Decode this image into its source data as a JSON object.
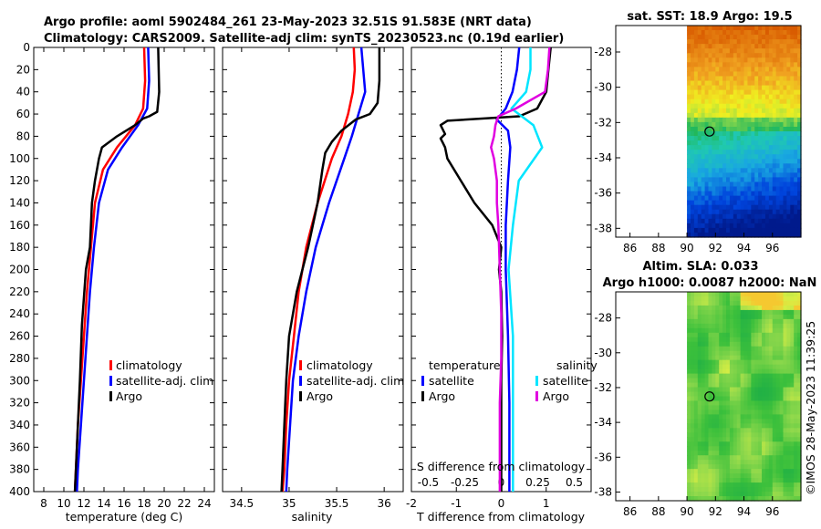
{
  "header": {
    "title_line1": "Argo profile: aoml 5902484_261 23-May-2023 32.51S 91.583E (NRT data)",
    "title_line2": "Climatology: CARS2009. Satellite-adj clim: synTS_20230523.nc (0.19d earlier)"
  },
  "colors": {
    "climatology": "#ff0000",
    "satellite": "#0000ff",
    "argo": "#000000",
    "salinity_satellite": "#00e5ff",
    "salinity_argo": "#e000e0"
  },
  "chart_data": [
    {
      "type": "line",
      "name": "temperature-panel",
      "xlabel": "temperature (deg C)",
      "ylabel": "",
      "xlim": [
        7,
        25
      ],
      "ylim": [
        0,
        400
      ],
      "xticks": [
        8,
        10,
        12,
        14,
        16,
        18,
        20,
        22,
        24
      ],
      "yticks": [
        0,
        20,
        40,
        60,
        80,
        100,
        120,
        140,
        160,
        180,
        200,
        220,
        240,
        260,
        280,
        300,
        320,
        340,
        360,
        380,
        400
      ],
      "legend": [
        "climatology",
        "satellite-adj. clim",
        "Argo"
      ],
      "series": [
        {
          "name": "climatology",
          "color": "#ff0000",
          "depth": [
            0,
            30,
            55,
            70,
            90,
            110,
            140,
            180,
            220,
            260,
            300,
            340,
            380,
            400
          ],
          "values": [
            18.0,
            18.1,
            17.9,
            17.1,
            15.3,
            13.9,
            13.1,
            12.7,
            12.3,
            12.0,
            11.7,
            11.4,
            11.2,
            11.1
          ]
        },
        {
          "name": "satellite-adj. clim",
          "color": "#0000ff",
          "depth": [
            0,
            30,
            55,
            70,
            90,
            110,
            140,
            180,
            220,
            260,
            300,
            340,
            380,
            400
          ],
          "values": [
            18.4,
            18.5,
            18.3,
            17.4,
            15.8,
            14.4,
            13.5,
            13.0,
            12.6,
            12.3,
            12.0,
            11.7,
            11.4,
            11.3
          ]
        },
        {
          "name": "Argo",
          "color": "#000000",
          "depth": [
            0,
            40,
            58,
            62,
            64,
            70,
            80,
            90,
            100,
            120,
            140,
            180,
            200,
            250,
            300,
            340,
            400
          ],
          "values": [
            19.4,
            19.5,
            19.3,
            18.5,
            17.9,
            17.1,
            15.3,
            13.8,
            13.5,
            13.1,
            12.8,
            12.6,
            12.2,
            11.8,
            11.6,
            11.4,
            11.1
          ]
        }
      ]
    },
    {
      "type": "line",
      "name": "salinity-panel",
      "xlabel": "salinity",
      "ylabel": "",
      "xlim": [
        34.3,
        36.2
      ],
      "ylim": [
        0,
        400
      ],
      "xticks": [
        34.5,
        35,
        35.5,
        36
      ],
      "xtick_labels": [
        "34.5",
        "35",
        "35.5",
        "36"
      ],
      "legend": [
        "climatology",
        "satellite-adj. clim",
        "Argo"
      ],
      "series": [
        {
          "name": "climatology",
          "color": "#ff0000",
          "depth": [
            0,
            20,
            40,
            60,
            80,
            100,
            140,
            180,
            220,
            260,
            300,
            340,
            380,
            400
          ],
          "values": [
            35.68,
            35.69,
            35.67,
            35.62,
            35.55,
            35.45,
            35.3,
            35.18,
            35.1,
            35.05,
            35.0,
            34.97,
            34.95,
            34.93
          ]
        },
        {
          "name": "satellite-adj. clim",
          "color": "#0000ff",
          "depth": [
            0,
            20,
            40,
            60,
            80,
            100,
            140,
            180,
            220,
            260,
            300,
            340,
            380,
            400
          ],
          "values": [
            35.76,
            35.78,
            35.8,
            35.73,
            35.66,
            35.58,
            35.42,
            35.28,
            35.18,
            35.1,
            35.04,
            35.01,
            34.98,
            34.97
          ]
        },
        {
          "name": "Argo",
          "color": "#000000",
          "depth": [
            0,
            30,
            50,
            60,
            65,
            75,
            85,
            95,
            110,
            140,
            180,
            220,
            260,
            300,
            340,
            380,
            400
          ],
          "values": [
            35.95,
            35.95,
            35.93,
            35.85,
            35.7,
            35.55,
            35.45,
            35.38,
            35.35,
            35.3,
            35.2,
            35.08,
            35.0,
            34.97,
            34.95,
            34.93,
            34.92
          ]
        }
      ]
    },
    {
      "type": "line",
      "name": "difference-panel",
      "xlabel": "T difference from climatology",
      "top_label": "S difference from climatology",
      "xlim": [
        -2,
        2
      ],
      "ylim": [
        0,
        400
      ],
      "xticks": [
        -2,
        -1,
        0,
        1
      ],
      "xtick_labels": [
        "-2",
        "-1",
        "0",
        "1"
      ],
      "s_xticks": [
        -0.5,
        -0.25,
        0,
        0.25,
        0.5
      ],
      "s_xtick_labels": [
        "-0.5",
        "-0.25",
        "0",
        "0.25",
        "0.5"
      ],
      "legend_temperature_title": "temperature",
      "legend_salinity_title": "salinity",
      "legend": [
        "satellite",
        "Argo"
      ],
      "series": [
        {
          "name": "temperature satellite",
          "color": "#0000ff",
          "depth": [
            0,
            20,
            40,
            55,
            65,
            75,
            90,
            120,
            160,
            200,
            260,
            320,
            400
          ],
          "values": [
            0.4,
            0.35,
            0.25,
            0.1,
            -0.1,
            0.15,
            0.2,
            0.15,
            0.1,
            0.1,
            0.15,
            0.18,
            0.18
          ]
        },
        {
          "name": "temperature Argo",
          "color": "#000000",
          "depth": [
            0,
            20,
            40,
            55,
            62,
            66,
            70,
            78,
            82,
            86,
            90,
            100,
            120,
            140,
            160,
            180,
            200,
            220,
            260,
            300,
            400
          ],
          "values": [
            1.1,
            1.05,
            1.0,
            0.8,
            0.4,
            -1.2,
            -1.35,
            -1.25,
            -1.35,
            -1.3,
            -1.25,
            -1.2,
            -0.9,
            -0.6,
            -0.2,
            0.0,
            -0.05,
            0.0,
            0.02,
            0.0,
            0.0
          ]
        },
        {
          "name": "salinity satellite",
          "color": "#00e5ff",
          "depth": [
            0,
            20,
            40,
            55,
            70,
            90,
            120,
            160,
            200,
            260,
            320,
            400
          ],
          "values": [
            0.2,
            0.2,
            0.17,
            0.07,
            0.22,
            0.28,
            0.12,
            0.08,
            0.05,
            0.08,
            0.08,
            0.08
          ]
        },
        {
          "name": "salinity Argo",
          "color": "#e000e0",
          "depth": [
            0,
            20,
            40,
            55,
            62,
            70,
            80,
            90,
            100,
            120,
            140,
            160,
            200,
            240,
            280,
            320,
            360,
            400
          ],
          "values": [
            0.33,
            0.32,
            0.3,
            0.1,
            -0.02,
            -0.04,
            -0.05,
            -0.07,
            -0.05,
            -0.03,
            -0.03,
            -0.02,
            -0.01,
            0.0,
            0.0,
            -0.01,
            -0.01,
            -0.01
          ]
        }
      ]
    },
    {
      "type": "heatmap",
      "name": "sst-map",
      "title": "sat. SST: 18.9 Argo: 19.5",
      "xlim": [
        85,
        98
      ],
      "ylim": [
        -38.5,
        -26.5
      ],
      "xticks": [
        86,
        88,
        90,
        92,
        94,
        96
      ],
      "yticks": [
        -28,
        -30,
        -32,
        -34,
        -36,
        -38
      ],
      "xtick_labels": [
        "86",
        "88",
        "90",
        "92",
        "94",
        "96"
      ],
      "ytick_labels": [
        "-28",
        "-30",
        "-32",
        "-34",
        "-36",
        "-38"
      ],
      "data_extent_x": [
        90,
        98
      ],
      "argo_position": [
        91.583,
        -32.51
      ]
    },
    {
      "type": "heatmap",
      "name": "sla-map",
      "title_line1": "Altim. SLA: 0.033",
      "title_line2": "Argo h1000: 0.0087 h2000: NaN",
      "xlim": [
        85,
        98
      ],
      "ylim": [
        -38.5,
        -26.5
      ],
      "xticks": [
        86,
        88,
        90,
        92,
        94,
        96
      ],
      "yticks": [
        -28,
        -30,
        -32,
        -34,
        -36,
        -38
      ],
      "xtick_labels": [
        "86",
        "88",
        "90",
        "92",
        "94",
        "96"
      ],
      "ytick_labels": [
        "-28",
        "-30",
        "-32",
        "-34",
        "-36",
        "-38"
      ],
      "data_extent_x": [
        90,
        98
      ],
      "argo_position": [
        91.583,
        -32.51
      ]
    }
  ],
  "footer": {
    "watermark": "©IMOS 28-May-2023 11:39:25"
  }
}
